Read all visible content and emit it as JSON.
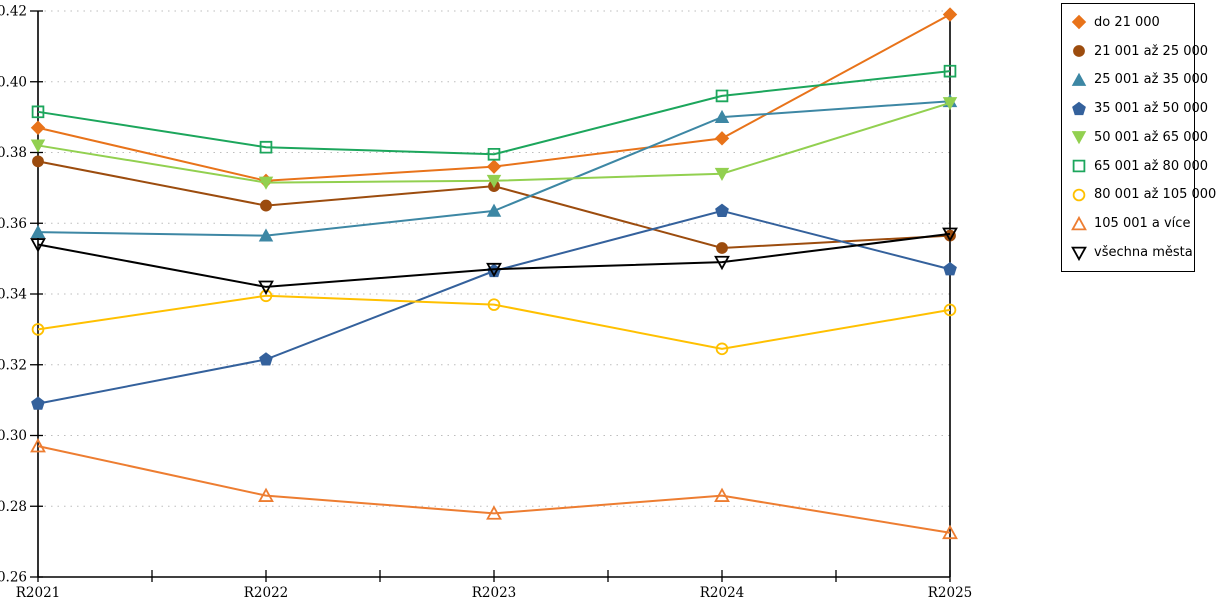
{
  "chart_data": {
    "type": "line",
    "title": "",
    "xlabel": "",
    "ylabel": "",
    "x_categories": [
      "R2021",
      "R2022",
      "R2023",
      "R2024",
      "R2025"
    ],
    "ylim": [
      0.26,
      0.42
    ],
    "y_tick_step": 0.02,
    "y_tick_labels": [
      "0.26",
      "0.28",
      "0.30",
      "0.32",
      "0.34",
      "0.36",
      "0.38",
      "0.40",
      "0.42"
    ],
    "grid": "horizontal dashed gridlines",
    "legend_position": "top-right boxed",
    "series": [
      {
        "name": "do 21 000",
        "color": "#e8731a",
        "marker": "diamond",
        "marker_style": "filled",
        "values": [
          0.387,
          0.372,
          0.376,
          0.384,
          0.419
        ]
      },
      {
        "name": "21 001 až 25 000",
        "color": "#9c4c0e",
        "marker": "circle",
        "marker_style": "filled",
        "values": [
          0.3775,
          0.365,
          0.3705,
          0.353,
          0.3565
        ]
      },
      {
        "name": "25 001 až 35 000",
        "color": "#3d87a4",
        "marker": "triangle-up",
        "marker_style": "filled",
        "values": [
          0.3575,
          0.3565,
          0.3635,
          0.39,
          0.3945
        ]
      },
      {
        "name": "35 001 až 50 000",
        "color": "#34619c",
        "marker": "pentagon",
        "marker_style": "filled",
        "values": [
          0.309,
          0.3215,
          0.3465,
          0.3635,
          0.347
        ]
      },
      {
        "name": "50 001 až 65 000",
        "color": "#92d050",
        "marker": "triangle-down",
        "marker_style": "filled",
        "values": [
          0.382,
          0.3715,
          0.372,
          0.374,
          0.394
        ]
      },
      {
        "name": "65 001 až 80 000",
        "color": "#1ca65c",
        "marker": "square",
        "marker_style": "hollow",
        "values": [
          0.3915,
          0.3815,
          0.3795,
          0.396,
          0.403
        ]
      },
      {
        "name": "80 001 až 105 000",
        "color": "#ffc000",
        "marker": "circle",
        "marker_style": "hollow",
        "values": [
          0.33,
          0.3395,
          0.337,
          0.3245,
          0.3355
        ]
      },
      {
        "name": "105 001 a více",
        "color": "#ed7d31",
        "marker": "triangle-up",
        "marker_style": "hollow",
        "values": [
          0.297,
          0.283,
          0.278,
          0.283,
          0.2725
        ]
      },
      {
        "name": "všechna města",
        "color": "#000000",
        "marker": "triangle-down",
        "marker_style": "hollow",
        "values": [
          0.354,
          0.342,
          0.347,
          0.349,
          0.357
        ]
      }
    ]
  }
}
